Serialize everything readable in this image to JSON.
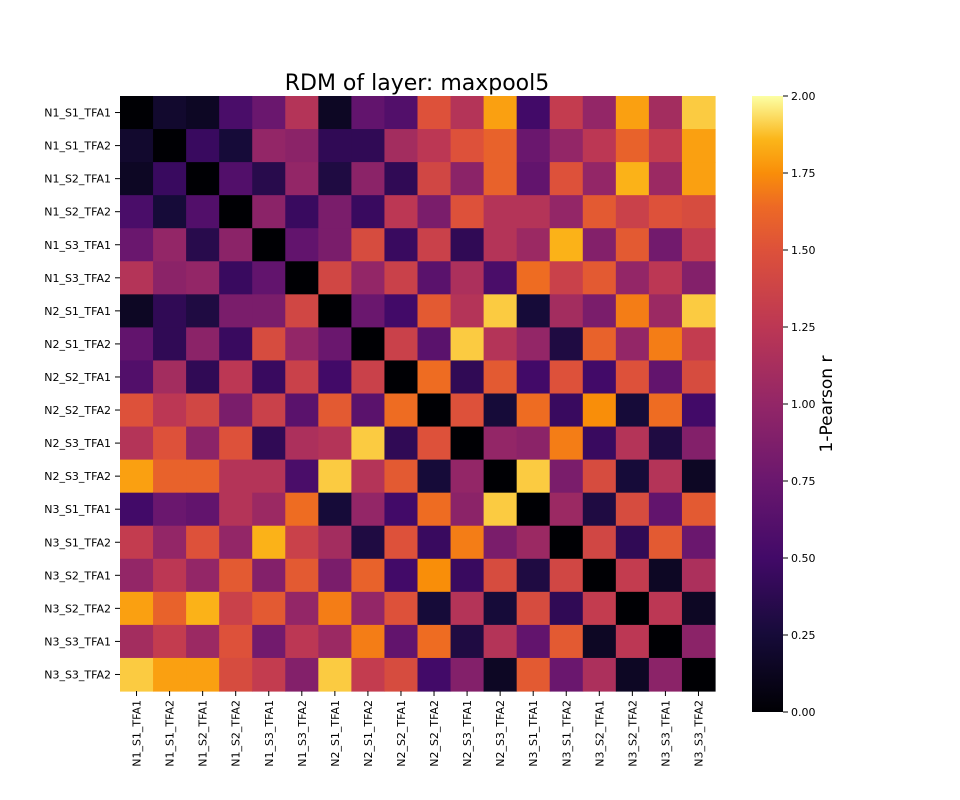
{
  "chart_data": {
    "type": "heatmap",
    "title": "RDM of layer: maxpool5",
    "labels": [
      "N1_S1_TFA1",
      "N1_S1_TFA2",
      "N1_S2_TFA1",
      "N1_S2_TFA2",
      "N1_S3_TFA1",
      "N1_S3_TFA2",
      "N2_S1_TFA1",
      "N2_S1_TFA2",
      "N2_S2_TFA1",
      "N2_S2_TFA2",
      "N2_S3_TFA1",
      "N2_S3_TFA2",
      "N3_S1_TFA1",
      "N3_S1_TFA2",
      "N3_S2_TFA1",
      "N3_S2_TFA2",
      "N3_S3_TFA1",
      "N3_S3_TFA2"
    ],
    "values": [
      [
        0.0,
        0.2,
        0.15,
        0.55,
        0.75,
        1.2,
        0.15,
        0.7,
        0.6,
        1.5,
        1.2,
        1.8,
        0.5,
        1.3,
        1.0,
        1.8,
        1.1,
        1.9
      ],
      [
        0.2,
        0.0,
        0.45,
        0.25,
        1.0,
        0.95,
        0.4,
        0.4,
        1.1,
        1.25,
        1.5,
        1.6,
        0.75,
        1.0,
        1.25,
        1.6,
        1.3,
        1.8
      ],
      [
        0.15,
        0.45,
        0.0,
        0.6,
        0.35,
        1.0,
        0.3,
        0.95,
        0.4,
        1.4,
        0.95,
        1.6,
        0.7,
        1.5,
        1.0,
        1.85,
        1.05,
        1.8
      ],
      [
        0.55,
        0.25,
        0.6,
        0.0,
        0.95,
        0.45,
        0.85,
        0.45,
        1.25,
        0.85,
        1.5,
        1.2,
        1.2,
        1.0,
        1.55,
        1.35,
        1.5,
        1.45
      ],
      [
        0.75,
        1.0,
        0.35,
        0.95,
        0.0,
        0.7,
        0.85,
        1.45,
        0.45,
        1.35,
        0.4,
        1.2,
        1.05,
        1.85,
        0.9,
        1.55,
        0.8,
        1.3
      ],
      [
        1.2,
        0.95,
        1.0,
        0.45,
        0.7,
        0.0,
        1.4,
        1.0,
        1.35,
        0.65,
        1.15,
        0.55,
        1.65,
        1.35,
        1.55,
        1.0,
        1.25,
        0.9
      ],
      [
        0.15,
        0.4,
        0.3,
        0.85,
        0.85,
        1.4,
        0.0,
        0.75,
        0.5,
        1.55,
        1.2,
        1.9,
        0.25,
        1.1,
        0.85,
        1.7,
        1.05,
        1.9
      ],
      [
        0.7,
        0.4,
        0.95,
        0.45,
        1.45,
        1.0,
        0.75,
        0.0,
        1.35,
        0.65,
        1.9,
        1.2,
        1.0,
        0.3,
        1.6,
        1.0,
        1.7,
        1.3
      ],
      [
        0.6,
        1.1,
        0.4,
        1.25,
        0.45,
        1.35,
        0.5,
        1.35,
        0.0,
        1.65,
        0.4,
        1.55,
        0.5,
        1.5,
        0.5,
        1.5,
        0.7,
        1.45
      ],
      [
        1.5,
        1.25,
        1.4,
        0.85,
        1.35,
        0.65,
        1.55,
        0.65,
        1.65,
        0.0,
        1.5,
        0.25,
        1.65,
        0.45,
        1.75,
        0.25,
        1.65,
        0.5
      ],
      [
        1.2,
        1.5,
        0.95,
        1.5,
        0.4,
        1.15,
        1.2,
        1.9,
        0.4,
        1.5,
        0.0,
        1.0,
        0.95,
        1.7,
        0.45,
        1.2,
        0.3,
        0.9
      ],
      [
        1.8,
        1.6,
        1.6,
        1.2,
        1.2,
        0.55,
        1.9,
        1.2,
        1.55,
        0.25,
        1.0,
        0.0,
        1.9,
        0.85,
        1.45,
        0.25,
        1.2,
        0.15
      ],
      [
        0.5,
        0.75,
        0.7,
        1.2,
        1.05,
        1.65,
        0.25,
        1.0,
        0.5,
        1.65,
        0.95,
        1.9,
        0.0,
        1.05,
        0.3,
        1.45,
        0.7,
        1.55
      ],
      [
        1.3,
        1.0,
        1.5,
        1.0,
        1.85,
        1.35,
        1.1,
        0.3,
        1.5,
        0.45,
        1.7,
        0.85,
        1.05,
        0.0,
        1.4,
        0.4,
        1.55,
        0.75
      ],
      [
        1.0,
        1.25,
        1.0,
        1.55,
        0.9,
        1.55,
        0.85,
        1.6,
        0.5,
        1.75,
        0.45,
        1.45,
        0.3,
        1.4,
        0.0,
        1.3,
        0.15,
        1.15
      ],
      [
        1.8,
        1.6,
        1.85,
        1.35,
        1.55,
        1.0,
        1.7,
        1.0,
        1.5,
        0.25,
        1.2,
        0.25,
        1.45,
        0.4,
        1.3,
        0.0,
        1.25,
        0.15
      ],
      [
        1.1,
        1.3,
        1.05,
        1.5,
        0.8,
        1.25,
        1.05,
        1.7,
        0.7,
        1.65,
        0.3,
        1.2,
        0.7,
        1.55,
        0.15,
        1.25,
        0.0,
        0.95
      ],
      [
        1.9,
        1.8,
        1.8,
        1.45,
        1.3,
        0.9,
        1.9,
        1.3,
        1.45,
        0.5,
        0.9,
        0.15,
        1.55,
        0.75,
        1.15,
        0.15,
        0.95,
        0.0
      ]
    ],
    "vmin": 0,
    "vmax": 2,
    "colormap": "inferno",
    "colorbar": {
      "label": "1-Pearson r",
      "ticks": [
        "0.00",
        "0.25",
        "0.50",
        "0.75",
        "1.00",
        "1.25",
        "1.50",
        "1.75",
        "2.00"
      ]
    }
  }
}
